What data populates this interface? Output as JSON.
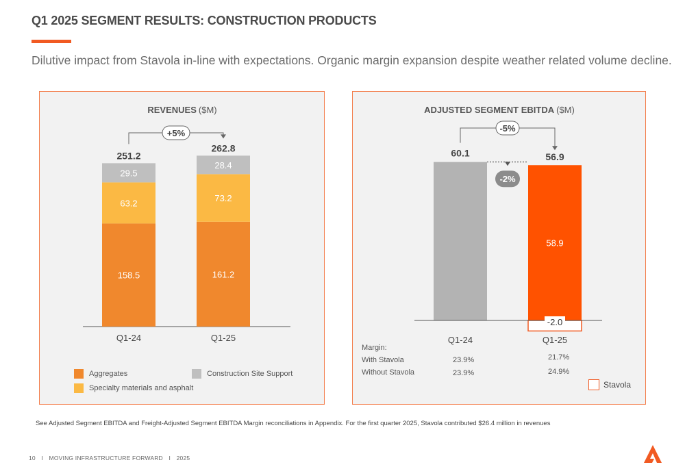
{
  "header": {
    "title": "Q1 2025 SEGMENT RESULTS: CONSTRUCTION PRODUCTS",
    "subtitle": "Dilutive impact from Stavola in-line with expectations. Organic margin expansion despite weather related volume decline."
  },
  "colors": {
    "accent": "#f15a22",
    "aggregates": "#f0882d",
    "specialty": "#fbb944",
    "site_support": "#bfbfbf",
    "prior_ebitda": "#b3b3b3",
    "current_ebitda": "#ff5200",
    "panel_border": "#f37b48"
  },
  "chart_data": [
    {
      "type": "bar",
      "stacked": true,
      "title": "REVENUES",
      "title_unit": "($M)",
      "categories": [
        "Q1-24",
        "Q1-25"
      ],
      "series": [
        {
          "name": "Aggregates",
          "values": [
            158.5,
            161.2
          ],
          "labels": [
            "158.5",
            "161.2"
          ]
        },
        {
          "name": "Specialty materials and asphalt",
          "values": [
            63.2,
            73.2
          ],
          "labels": [
            "63.2",
            "73.2"
          ]
        },
        {
          "name": "Construction Site Support",
          "values": [
            29.5,
            28.4
          ],
          "labels": [
            "29.5",
            "28.4"
          ]
        }
      ],
      "totals": [
        251.2,
        262.8
      ],
      "total_labels": [
        "251.2",
        "262.8"
      ],
      "change_label": "+5%",
      "legend": {
        "position": "bottom",
        "items": [
          "Aggregates",
          "Construction Site Support",
          "Specialty materials and asphalt"
        ]
      },
      "ylim": [
        0,
        290
      ]
    },
    {
      "type": "bar",
      "title": "ADJUSTED SEGMENT EBITDA",
      "title_unit": "($M)",
      "categories": [
        "Q1-24",
        "Q1-25"
      ],
      "prior_value": 60.1,
      "prior_label": "60.1",
      "current_total": 56.9,
      "current_total_label": "56.9",
      "current_organic": 58.9,
      "current_organic_label": "58.9",
      "stavola_value": -2.0,
      "stavola_label": "-2.0",
      "change_label": "-5%",
      "organic_change_label": "-2%",
      "ylim": [
        0,
        66
      ],
      "margin": {
        "heading": "Margin:",
        "rows": [
          {
            "label": "With Stavola",
            "values": [
              "23.9%",
              "21.7%"
            ]
          },
          {
            "label": "Without Stavola",
            "values": [
              "23.9%",
              "24.9%"
            ]
          }
        ]
      },
      "legend": {
        "position": "bottom-right",
        "items": [
          "Stavola"
        ]
      }
    }
  ],
  "footnote": "See Adjusted Segment EBITDA and Freight-Adjusted Segment EBITDA Margin reconciliations in Appendix.  For the first quarter 2025, Stavola contributed $26.4 million in revenues",
  "footer": {
    "page_number": "10",
    "separator": "I",
    "tagline": "MOVING INFRASTRUCTURE FORWARD",
    "year": "2025"
  }
}
